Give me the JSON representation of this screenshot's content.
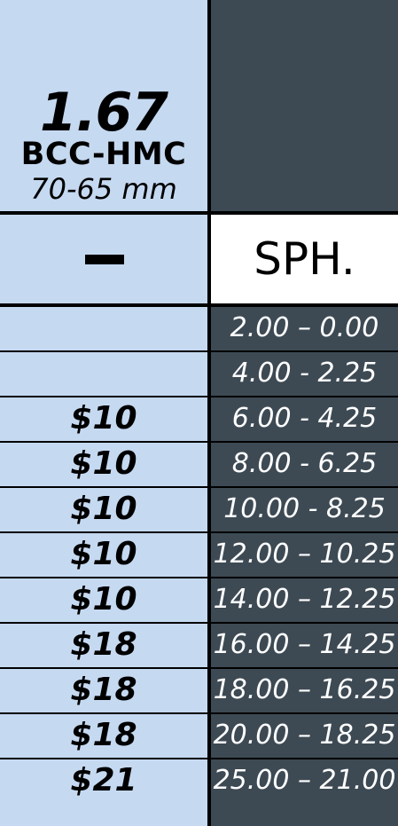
{
  "header": {
    "index": "1.67",
    "coating": "BCC-HMC",
    "diameter": "70-65 mm"
  },
  "column_headers": {
    "cyl_symbol": "minus",
    "sph": "SPH."
  },
  "rows": [
    {
      "price": "",
      "sph_range": "2.00 – 0.00"
    },
    {
      "price": "",
      "sph_range": "4.00 - 2.25"
    },
    {
      "price": "$10",
      "sph_range": "6.00 - 4.25"
    },
    {
      "price": "$10",
      "sph_range": "8.00 - 6.25"
    },
    {
      "price": "$10",
      "sph_range": "10.00 - 8.25"
    },
    {
      "price": "$10",
      "sph_range": "12.00 – 10.25"
    },
    {
      "price": "$10",
      "sph_range": "14.00 – 12.25"
    },
    {
      "price": "$18",
      "sph_range": "16.00 – 14.25"
    },
    {
      "price": "$18",
      "sph_range": "18.00 – 16.25"
    },
    {
      "price": "$18",
      "sph_range": "20.00 – 18.25"
    },
    {
      "price": "$21",
      "sph_range": "25.00 – 21.00"
    }
  ],
  "colors": {
    "left_background": "#c5d9f1",
    "right_background": "#3d4a54",
    "grid_lines": "#000000",
    "sph_header_background": "#ffffff"
  }
}
